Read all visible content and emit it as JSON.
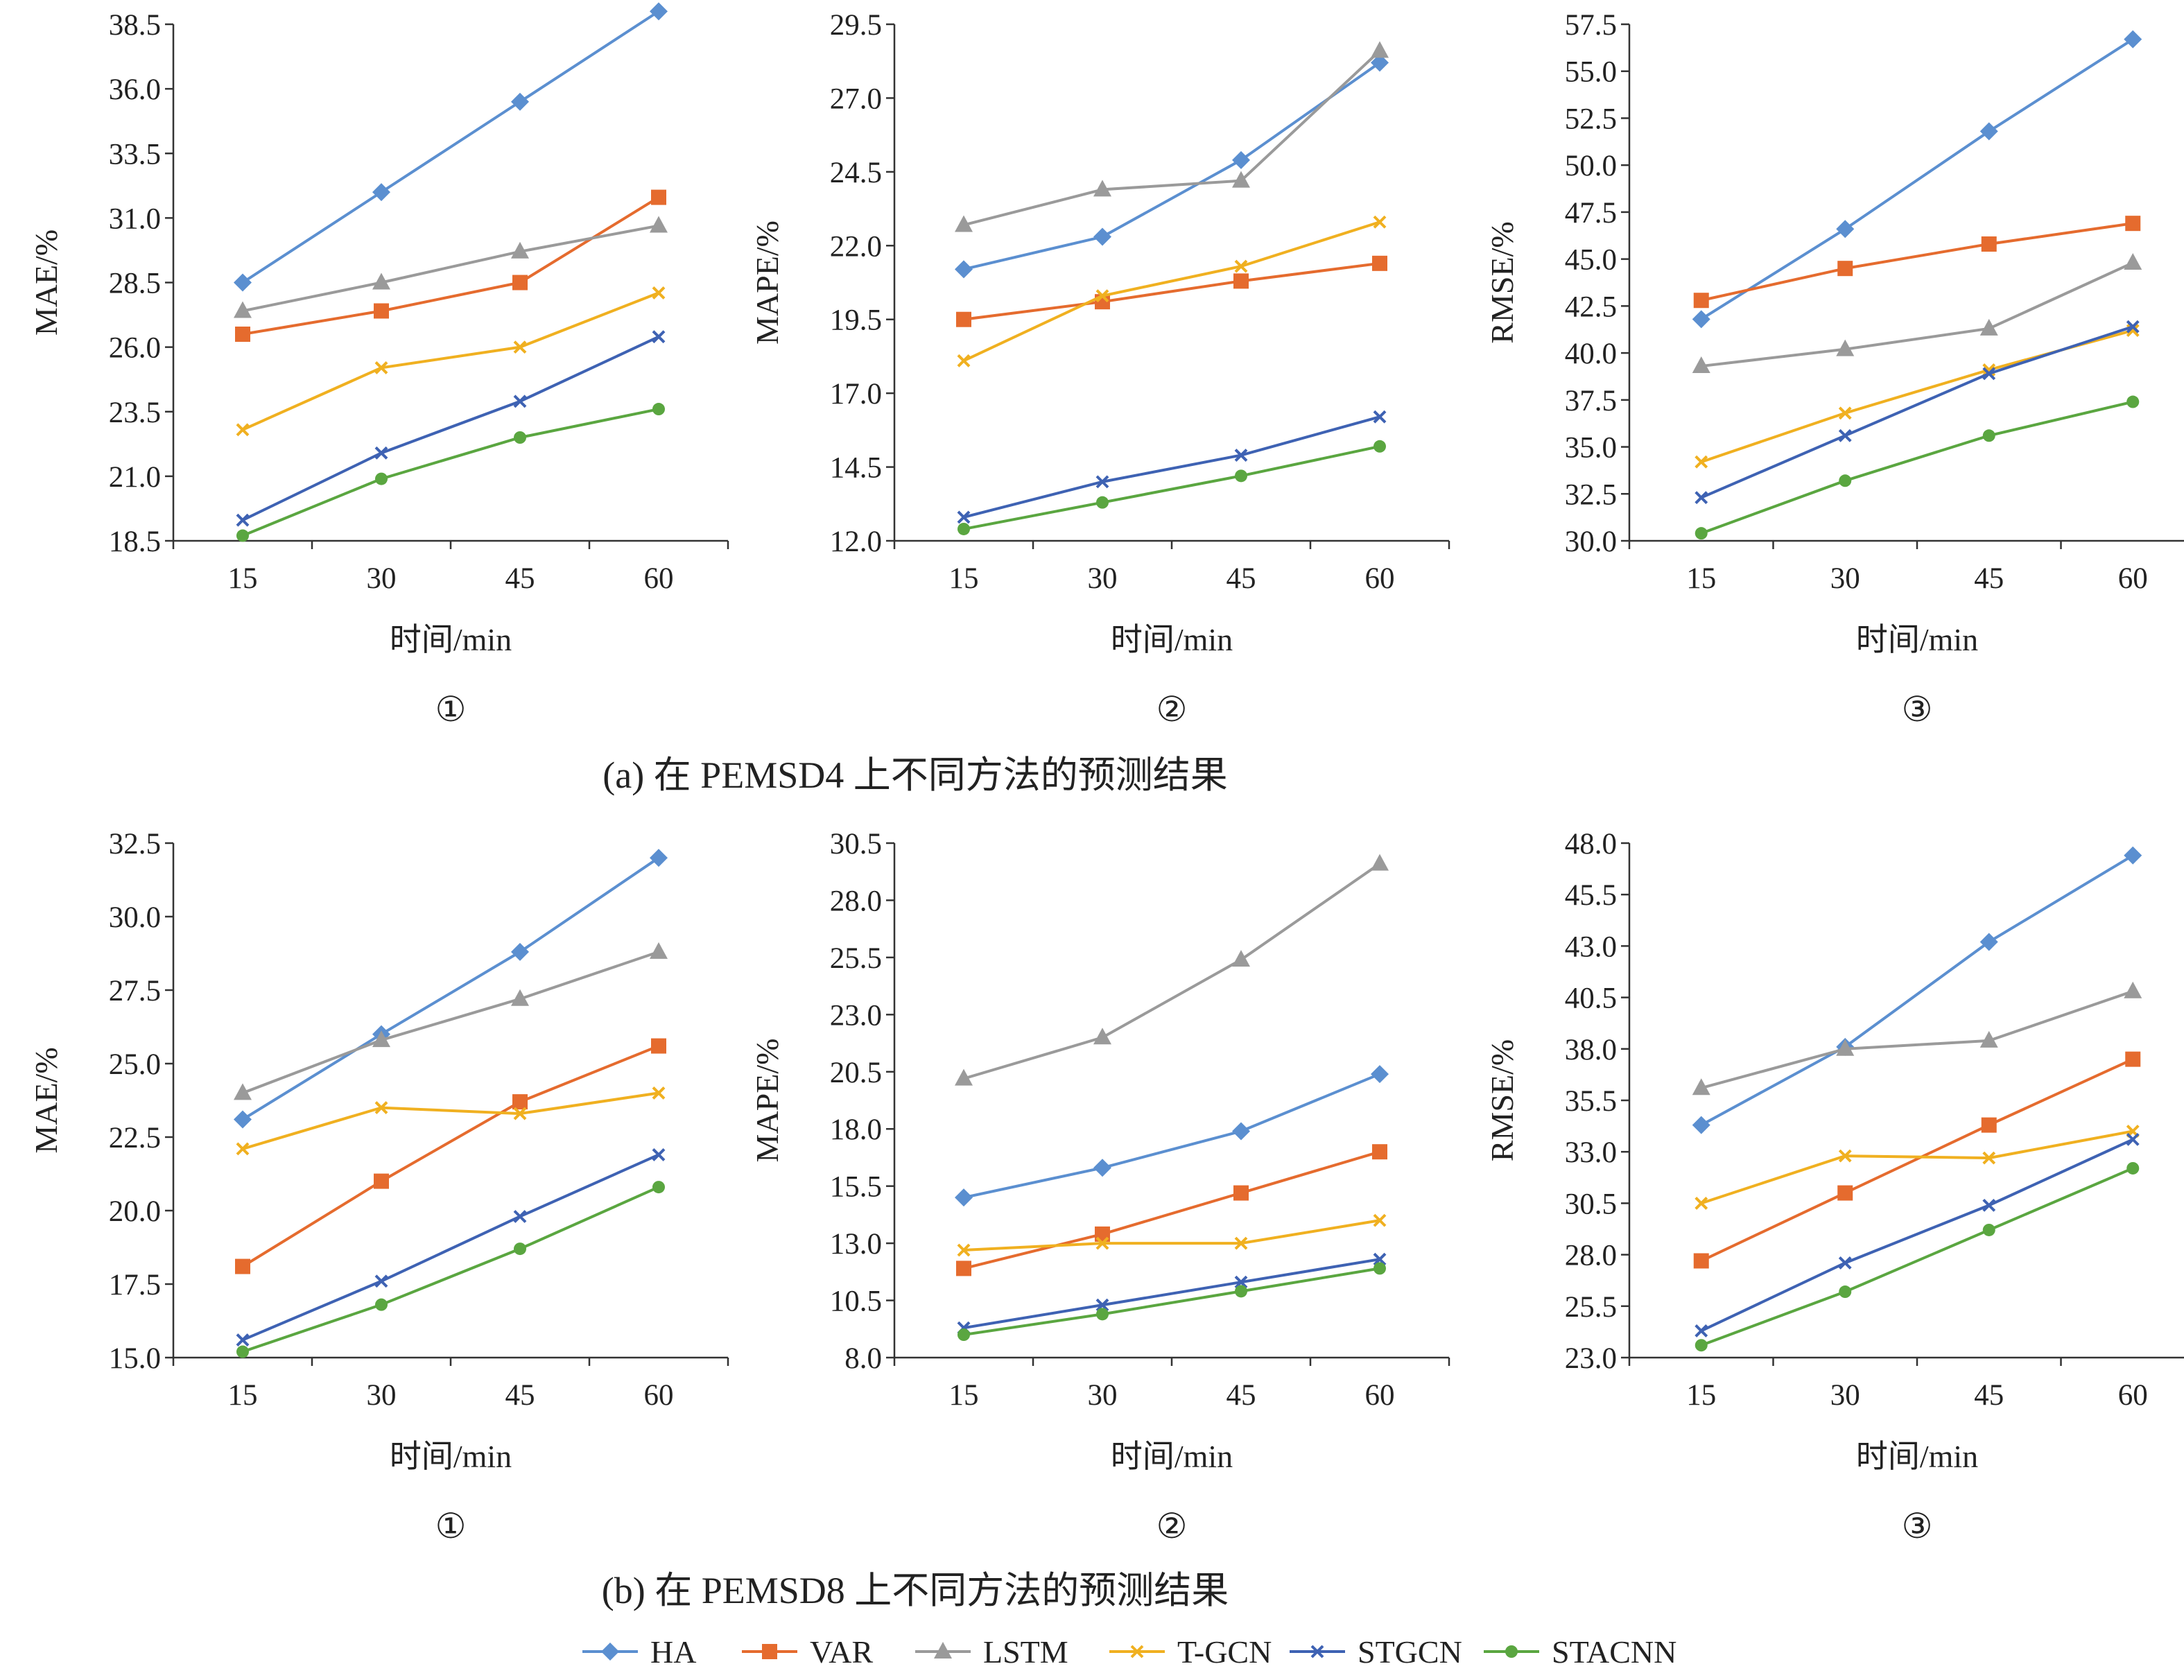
{
  "captions": {
    "a": "(a) 在 PEMSD4 上不同方法的预测结果",
    "b": "(b) 在 PEMSD8 上不同方法的预测结果"
  },
  "series_styles": [
    {
      "name": "HA",
      "color": "#5b8fd0",
      "marker": "diamond"
    },
    {
      "name": "VAR",
      "color": "#e56b2e",
      "marker": "square"
    },
    {
      "name": "LSTM",
      "color": "#9a9a9a",
      "marker": "triangle"
    },
    {
      "name": "T-GCN",
      "color": "#f0b020",
      "marker": "x"
    },
    {
      "name": "STGCN",
      "color": "#3e62b3",
      "marker": "x"
    },
    {
      "name": "STACNN",
      "color": "#5aa640",
      "marker": "circle"
    }
  ],
  "chart_data": [
    {
      "type": "line",
      "group": "a",
      "panel_label": "①",
      "xlabel": "时间/min",
      "ylabel": "MAE/%",
      "categories": [
        "15",
        "30",
        "45",
        "60"
      ],
      "ylim": [
        18.5,
        38.5
      ],
      "yticks": [
        "18.5",
        "21.0",
        "23.5",
        "26.0",
        "28.5",
        "31.0",
        "33.5",
        "36.0",
        "38.5"
      ],
      "series": [
        {
          "name": "HA",
          "values": [
            28.5,
            32.0,
            35.5,
            39.0
          ]
        },
        {
          "name": "VAR",
          "values": [
            26.5,
            27.4,
            28.5,
            31.8
          ]
        },
        {
          "name": "LSTM",
          "values": [
            27.4,
            28.5,
            29.7,
            30.7
          ]
        },
        {
          "name": "T-GCN",
          "values": [
            22.8,
            25.2,
            26.0,
            28.1
          ]
        },
        {
          "name": "STGCN",
          "values": [
            19.3,
            21.9,
            23.9,
            26.4
          ]
        },
        {
          "name": "STACNN",
          "values": [
            18.7,
            20.9,
            22.5,
            23.6
          ]
        }
      ]
    },
    {
      "type": "line",
      "group": "a",
      "panel_label": "②",
      "xlabel": "时间/min",
      "ylabel": "MAPE/%",
      "categories": [
        "15",
        "30",
        "45",
        "60"
      ],
      "ylim": [
        12.0,
        29.5
      ],
      "yticks": [
        "12.0",
        "14.5",
        "17.0",
        "19.5",
        "22.0",
        "24.5",
        "27.0",
        "29.5"
      ],
      "series": [
        {
          "name": "HA",
          "values": [
            21.2,
            22.3,
            24.9,
            28.2
          ]
        },
        {
          "name": "VAR",
          "values": [
            19.5,
            20.1,
            20.8,
            21.4
          ]
        },
        {
          "name": "LSTM",
          "values": [
            22.7,
            23.9,
            24.2,
            28.6
          ]
        },
        {
          "name": "T-GCN",
          "values": [
            18.1,
            20.3,
            21.3,
            22.8
          ]
        },
        {
          "name": "STGCN",
          "values": [
            12.8,
            14.0,
            14.9,
            16.2
          ]
        },
        {
          "name": "STACNN",
          "values": [
            12.4,
            13.3,
            14.2,
            15.2
          ]
        }
      ]
    },
    {
      "type": "line",
      "group": "a",
      "panel_label": "③",
      "xlabel": "时间/min",
      "ylabel": "RMSE/%",
      "categories": [
        "15",
        "30",
        "45",
        "60"
      ],
      "ylim": [
        30.0,
        57.5
      ],
      "yticks": [
        "30.0",
        "32.5",
        "35.0",
        "37.5",
        "40.0",
        "42.5",
        "45.0",
        "47.5",
        "50.0",
        "52.5",
        "55.0",
        "57.5"
      ],
      "series": [
        {
          "name": "HA",
          "values": [
            41.8,
            46.6,
            51.8,
            56.7
          ]
        },
        {
          "name": "VAR",
          "values": [
            42.8,
            44.5,
            45.8,
            46.9
          ]
        },
        {
          "name": "LSTM",
          "values": [
            39.3,
            40.2,
            41.3,
            44.8
          ]
        },
        {
          "name": "T-GCN",
          "values": [
            34.2,
            36.8,
            39.1,
            41.2
          ]
        },
        {
          "name": "STGCN",
          "values": [
            32.3,
            35.6,
            38.9,
            41.4
          ]
        },
        {
          "name": "STACNN",
          "values": [
            30.4,
            33.2,
            35.6,
            37.4
          ]
        }
      ]
    },
    {
      "type": "line",
      "group": "b",
      "panel_label": "①",
      "xlabel": "时间/min",
      "ylabel": "MAE/%",
      "categories": [
        "15",
        "30",
        "45",
        "60"
      ],
      "ylim": [
        15.0,
        32.5
      ],
      "yticks": [
        "15.0",
        "17.5",
        "20.0",
        "22.5",
        "25.0",
        "27.5",
        "30.0",
        "32.5"
      ],
      "series": [
        {
          "name": "HA",
          "values": [
            23.1,
            26.0,
            28.8,
            32.0
          ]
        },
        {
          "name": "VAR",
          "values": [
            18.1,
            21.0,
            23.7,
            25.6
          ]
        },
        {
          "name": "LSTM",
          "values": [
            24.0,
            25.8,
            27.2,
            28.8
          ]
        },
        {
          "name": "T-GCN",
          "values": [
            22.1,
            23.5,
            23.3,
            24.0
          ]
        },
        {
          "name": "STGCN",
          "values": [
            15.6,
            17.6,
            19.8,
            21.9
          ]
        },
        {
          "name": "STACNN",
          "values": [
            15.2,
            16.8,
            18.7,
            20.8
          ]
        }
      ]
    },
    {
      "type": "line",
      "group": "b",
      "panel_label": "②",
      "xlabel": "时间/min",
      "ylabel": "MAPE/%",
      "categories": [
        "15",
        "30",
        "45",
        "60"
      ],
      "ylim": [
        8.0,
        30.5
      ],
      "yticks": [
        "8.0",
        "10.5",
        "13.0",
        "15.5",
        "18.0",
        "20.5",
        "23.0",
        "25.5",
        "28.0",
        "30.5"
      ],
      "series": [
        {
          "name": "HA",
          "values": [
            15.0,
            16.3,
            17.9,
            20.4
          ]
        },
        {
          "name": "VAR",
          "values": [
            11.9,
            13.4,
            15.2,
            17.0
          ]
        },
        {
          "name": "LSTM",
          "values": [
            20.2,
            22.0,
            25.4,
            29.6
          ]
        },
        {
          "name": "T-GCN",
          "values": [
            12.7,
            13.0,
            13.0,
            14.0
          ]
        },
        {
          "name": "STGCN",
          "values": [
            9.3,
            10.3,
            11.3,
            12.3
          ]
        },
        {
          "name": "STACNN",
          "values": [
            9.0,
            9.9,
            10.9,
            11.9
          ]
        }
      ]
    },
    {
      "type": "line",
      "group": "b",
      "panel_label": "③",
      "xlabel": "时间/min",
      "ylabel": "RMSE/%",
      "categories": [
        "15",
        "30",
        "45",
        "60"
      ],
      "ylim": [
        23.0,
        48.0
      ],
      "yticks": [
        "23.0",
        "25.5",
        "28.0",
        "30.5",
        "33.0",
        "35.5",
        "38.0",
        "40.5",
        "43.0",
        "45.5",
        "48.0"
      ],
      "series": [
        {
          "name": "HA",
          "values": [
            34.3,
            38.1,
            43.2,
            47.4
          ]
        },
        {
          "name": "VAR",
          "values": [
            27.7,
            31.0,
            34.3,
            37.5
          ]
        },
        {
          "name": "LSTM",
          "values": [
            36.1,
            38.0,
            38.4,
            40.8
          ]
        },
        {
          "name": "T-GCN",
          "values": [
            30.5,
            32.8,
            32.7,
            34.0
          ]
        },
        {
          "name": "STGCN",
          "values": [
            24.3,
            27.6,
            30.4,
            33.6
          ]
        },
        {
          "name": "STACNN",
          "values": [
            23.6,
            26.2,
            29.2,
            32.2
          ]
        }
      ]
    }
  ]
}
